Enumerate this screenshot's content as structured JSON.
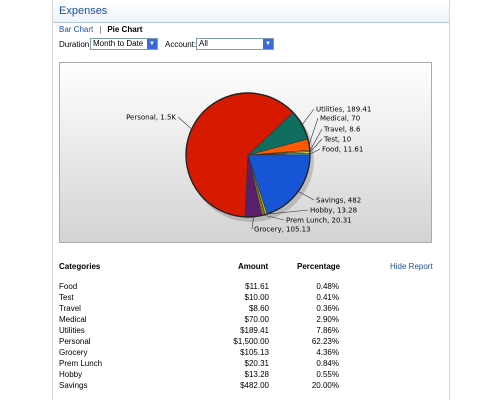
{
  "header": {
    "title": "Expenses"
  },
  "tabs": {
    "bar_chart": "Bar Chart",
    "separator": "|",
    "pie_chart": "Pie Chart"
  },
  "filters": {
    "duration_label": "Duration:",
    "duration_value": "Month to Date",
    "account_label": "Account:",
    "account_value": "All"
  },
  "chart_data": {
    "type": "pie",
    "slices": [
      {
        "label": "Food",
        "value": 11.61,
        "color": "#4aa3e0"
      },
      {
        "label": "Test",
        "value": 10,
        "color": "#c8d64a"
      },
      {
        "label": "Travel",
        "value": 8.6,
        "color": "#ff9a00"
      },
      {
        "label": "Medical",
        "value": 70,
        "color": "#ff5a00"
      },
      {
        "label": "Utilities",
        "value": 189.41,
        "color": "#0f6e5f"
      },
      {
        "label": "Personal",
        "value": 1500,
        "color": "#d61a00"
      },
      {
        "label": "Grocery",
        "value": 105.13,
        "color": "#5a1f6a"
      },
      {
        "label": "Prem Lunch",
        "value": 20.31,
        "color": "#8a6a3a"
      },
      {
        "label": "Hobby",
        "value": 13.28,
        "color": "#b8c800"
      },
      {
        "label": "Savings",
        "value": 482,
        "color": "#1656d6"
      }
    ],
    "labels": [
      "Food, 11.61",
      "Test, 10",
      "Travel, 8.6",
      "Medical, 70",
      "Utilities, 189.41",
      "Personal, 1.5K",
      "Grocery, 105.13",
      "Prem Lunch, 20.31",
      "Hobby, 13.28",
      "Savings, 482"
    ]
  },
  "table": {
    "headers": {
      "category": "Categories",
      "amount": "Amount",
      "percentage": "Percentage"
    },
    "hide_report": "Hide Report",
    "rows": [
      {
        "category": "Food",
        "amount": "$11.61",
        "percentage": "0.48%"
      },
      {
        "category": "Test",
        "amount": "$10.00",
        "percentage": "0.41%"
      },
      {
        "category": "Travel",
        "amount": "$8.60",
        "percentage": "0.36%"
      },
      {
        "category": "Medical",
        "amount": "$70.00",
        "percentage": "2.90%"
      },
      {
        "category": "Utilities",
        "amount": "$189.41",
        "percentage": "7.86%"
      },
      {
        "category": "Personal",
        "amount": "$1,500.00",
        "percentage": "62.23%"
      },
      {
        "category": "Grocery",
        "amount": "$105.13",
        "percentage": "4.36%"
      },
      {
        "category": "Prem Lunch",
        "amount": "$20.31",
        "percentage": "0.84%"
      },
      {
        "category": "Hobby",
        "amount": "$13.28",
        "percentage": "0.55%"
      },
      {
        "category": "Savings",
        "amount": "$482.00",
        "percentage": "20.00%"
      }
    ]
  }
}
